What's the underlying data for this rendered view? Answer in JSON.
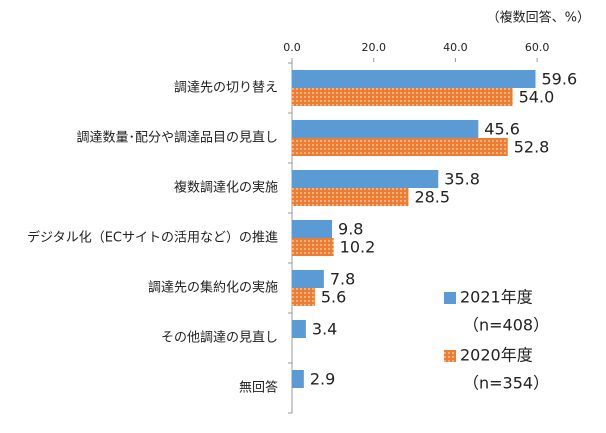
{
  "chart_data": {
    "type": "bar",
    "orientation": "horizontal",
    "unit_label": "（複数回答、%）",
    "categories": [
      "調達先の切り替え",
      "調達数量･配分や調達品目の見直し",
      "複数調達化の実施",
      "デジタル化（ECサイトの活用など）の推進",
      "調達先の集約化の実施",
      "その他調達の見直し",
      "無回答"
    ],
    "series": [
      {
        "name": "2021年度",
        "sample": "（n=408）",
        "color": "#5b9bd5",
        "pattern": "solid",
        "values": [
          59.6,
          45.6,
          35.8,
          9.8,
          7.8,
          3.4,
          2.9
        ],
        "value_labels": [
          "59.6",
          "45.6",
          "35.8",
          "9.8",
          "7.8",
          "3.4",
          "2.9"
        ]
      },
      {
        "name": "2020年度",
        "sample": "（n=354）",
        "color": "#ed7d31",
        "pattern": "dots",
        "values": [
          54.0,
          52.8,
          28.5,
          10.2,
          5.6,
          null,
          null
        ],
        "value_labels": [
          "54.0",
          "52.8",
          "28.5",
          "10.2",
          "5.6",
          null,
          null
        ]
      }
    ],
    "xlim": [
      0,
      70
    ],
    "xticks": [
      {
        "value": 0,
        "label": "0.0"
      },
      {
        "value": 20,
        "label": "20.0"
      },
      {
        "value": 40,
        "label": "40.0"
      },
      {
        "value": 60,
        "label": "60.0"
      }
    ]
  }
}
